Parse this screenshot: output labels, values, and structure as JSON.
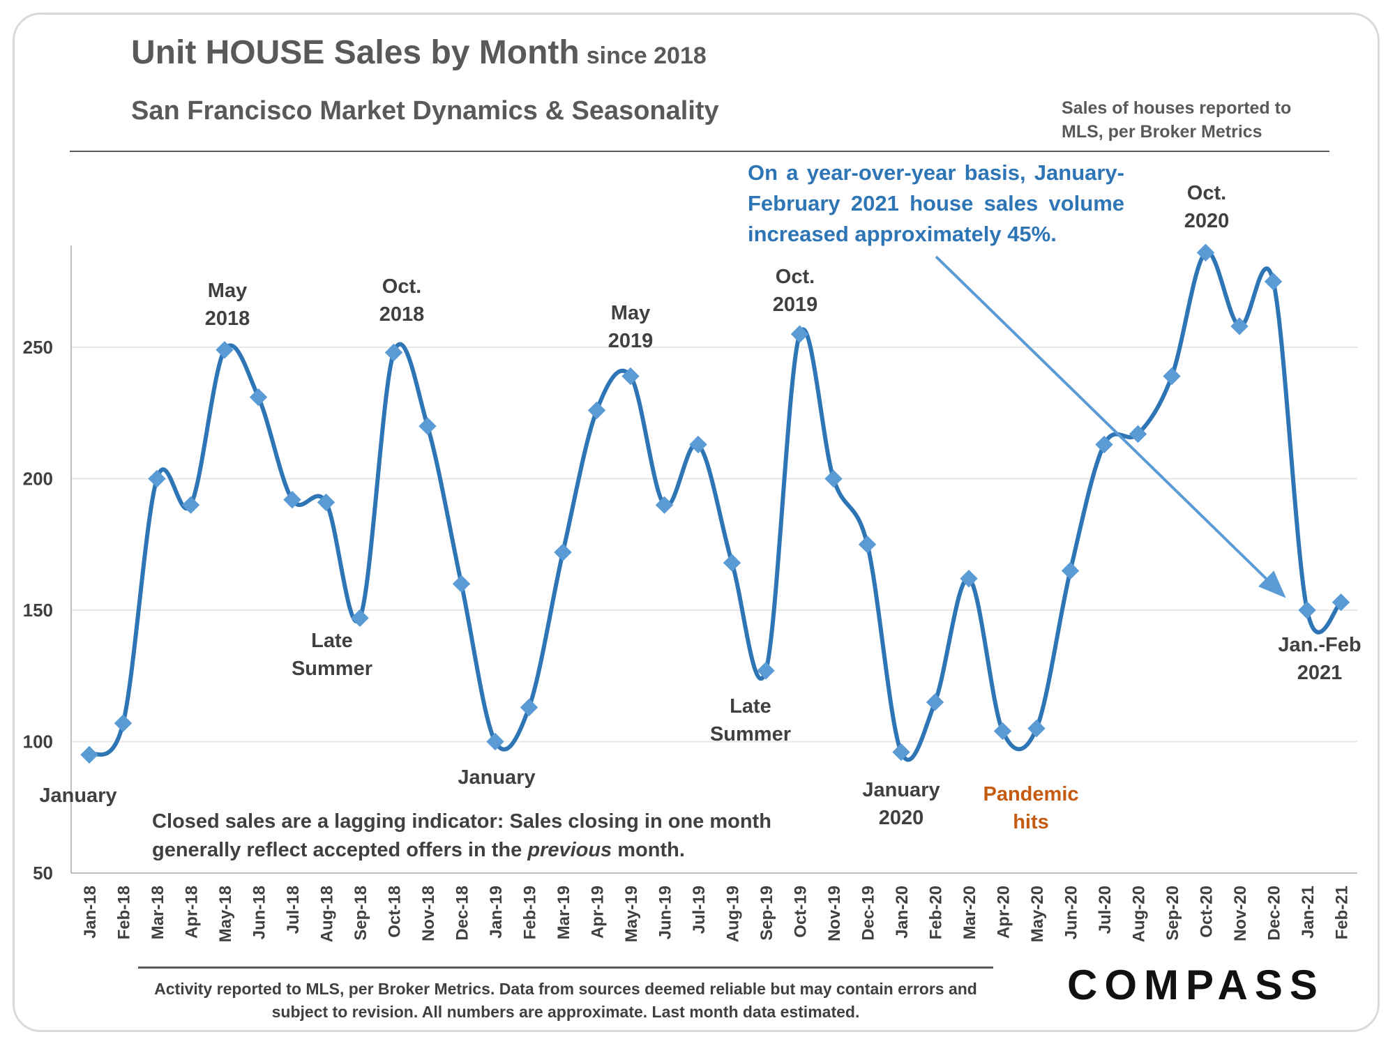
{
  "header": {
    "title": "Unit HOUSE Sales by Month",
    "title_suffix": "since 2018",
    "subtitle": "San Francisco Market Dynamics & Seasonality",
    "source_note": "Sales of houses reported to MLS, per Broker Metrics"
  },
  "notes": {
    "yoy": "On a year-over-year basis, January-February 2021 house sales volume increased approximately 45%.",
    "lagging_prefix": "Closed sales are a lagging indicator: Sales closing in one month generally reflect accepted offers in the ",
    "lagging_emphasis": "previous",
    "lagging_suffix": " month."
  },
  "footer": {
    "text": "Activity reported to MLS, per Broker Metrics. Data from sources deemed reliable but may contain errors and subject to revision. All numbers are approximate. Last month data estimated.",
    "logo": "COMPASS"
  },
  "colors": {
    "line": "#2e75b6",
    "marker": "#5b9bd5",
    "arrow": "#5b9bd5",
    "pandemic": "#c55a11"
  },
  "chart_data": {
    "type": "line",
    "categories": [
      "Jan-18",
      "Feb-18",
      "Mar-18",
      "Apr-18",
      "May-18",
      "Jun-18",
      "Jul-18",
      "Aug-18",
      "Sep-18",
      "Oct-18",
      "Nov-18",
      "Dec-18",
      "Jan-19",
      "Feb-19",
      "Mar-19",
      "Apr-19",
      "May-19",
      "Jun-19",
      "Jul-19",
      "Aug-19",
      "Sep-19",
      "Oct-19",
      "Nov-19",
      "Dec-19",
      "Jan-20",
      "Feb-20",
      "Mar-20",
      "Apr-20",
      "May-20",
      "Jun-20",
      "Jul-20",
      "Aug-20",
      "Sep-20",
      "Oct-20",
      "Nov-20",
      "Dec-20",
      "Jan-21",
      "Feb-21"
    ],
    "values": [
      95,
      107,
      200,
      190,
      249,
      231,
      192,
      191,
      147,
      248,
      220,
      160,
      100,
      113,
      172,
      226,
      239,
      190,
      213,
      168,
      127,
      255,
      200,
      175,
      96,
      115,
      162,
      104,
      105,
      165,
      213,
      217,
      239,
      286,
      258,
      275,
      150,
      153
    ],
    "ylim": [
      50,
      290
    ],
    "yticks": [
      50,
      100,
      150,
      200,
      250
    ],
    "grid": true,
    "legend": "none",
    "annotations": [
      {
        "lines": [
          "January"
        ],
        "style": "normal"
      },
      {
        "lines": [
          "May",
          "2018"
        ],
        "style": "normal"
      },
      {
        "lines": [
          "Late",
          "Summer"
        ],
        "style": "normal"
      },
      {
        "lines": [
          "Oct.",
          "2018"
        ],
        "style": "normal"
      },
      {
        "lines": [
          "January"
        ],
        "style": "normal"
      },
      {
        "lines": [
          "May",
          "2019"
        ],
        "style": "normal"
      },
      {
        "lines": [
          "Late",
          "Summer"
        ],
        "style": "normal"
      },
      {
        "lines": [
          "Oct.",
          "2019"
        ],
        "style": "normal"
      },
      {
        "lines": [
          "January",
          "2020"
        ],
        "style": "normal"
      },
      {
        "lines": [
          "Pandemic",
          "hits"
        ],
        "style": "orange"
      },
      {
        "lines": [
          "Oct.",
          "2020"
        ],
        "style": "normal"
      },
      {
        "lines": [
          "Jan.-Feb",
          "2021"
        ],
        "style": "normal"
      }
    ]
  }
}
